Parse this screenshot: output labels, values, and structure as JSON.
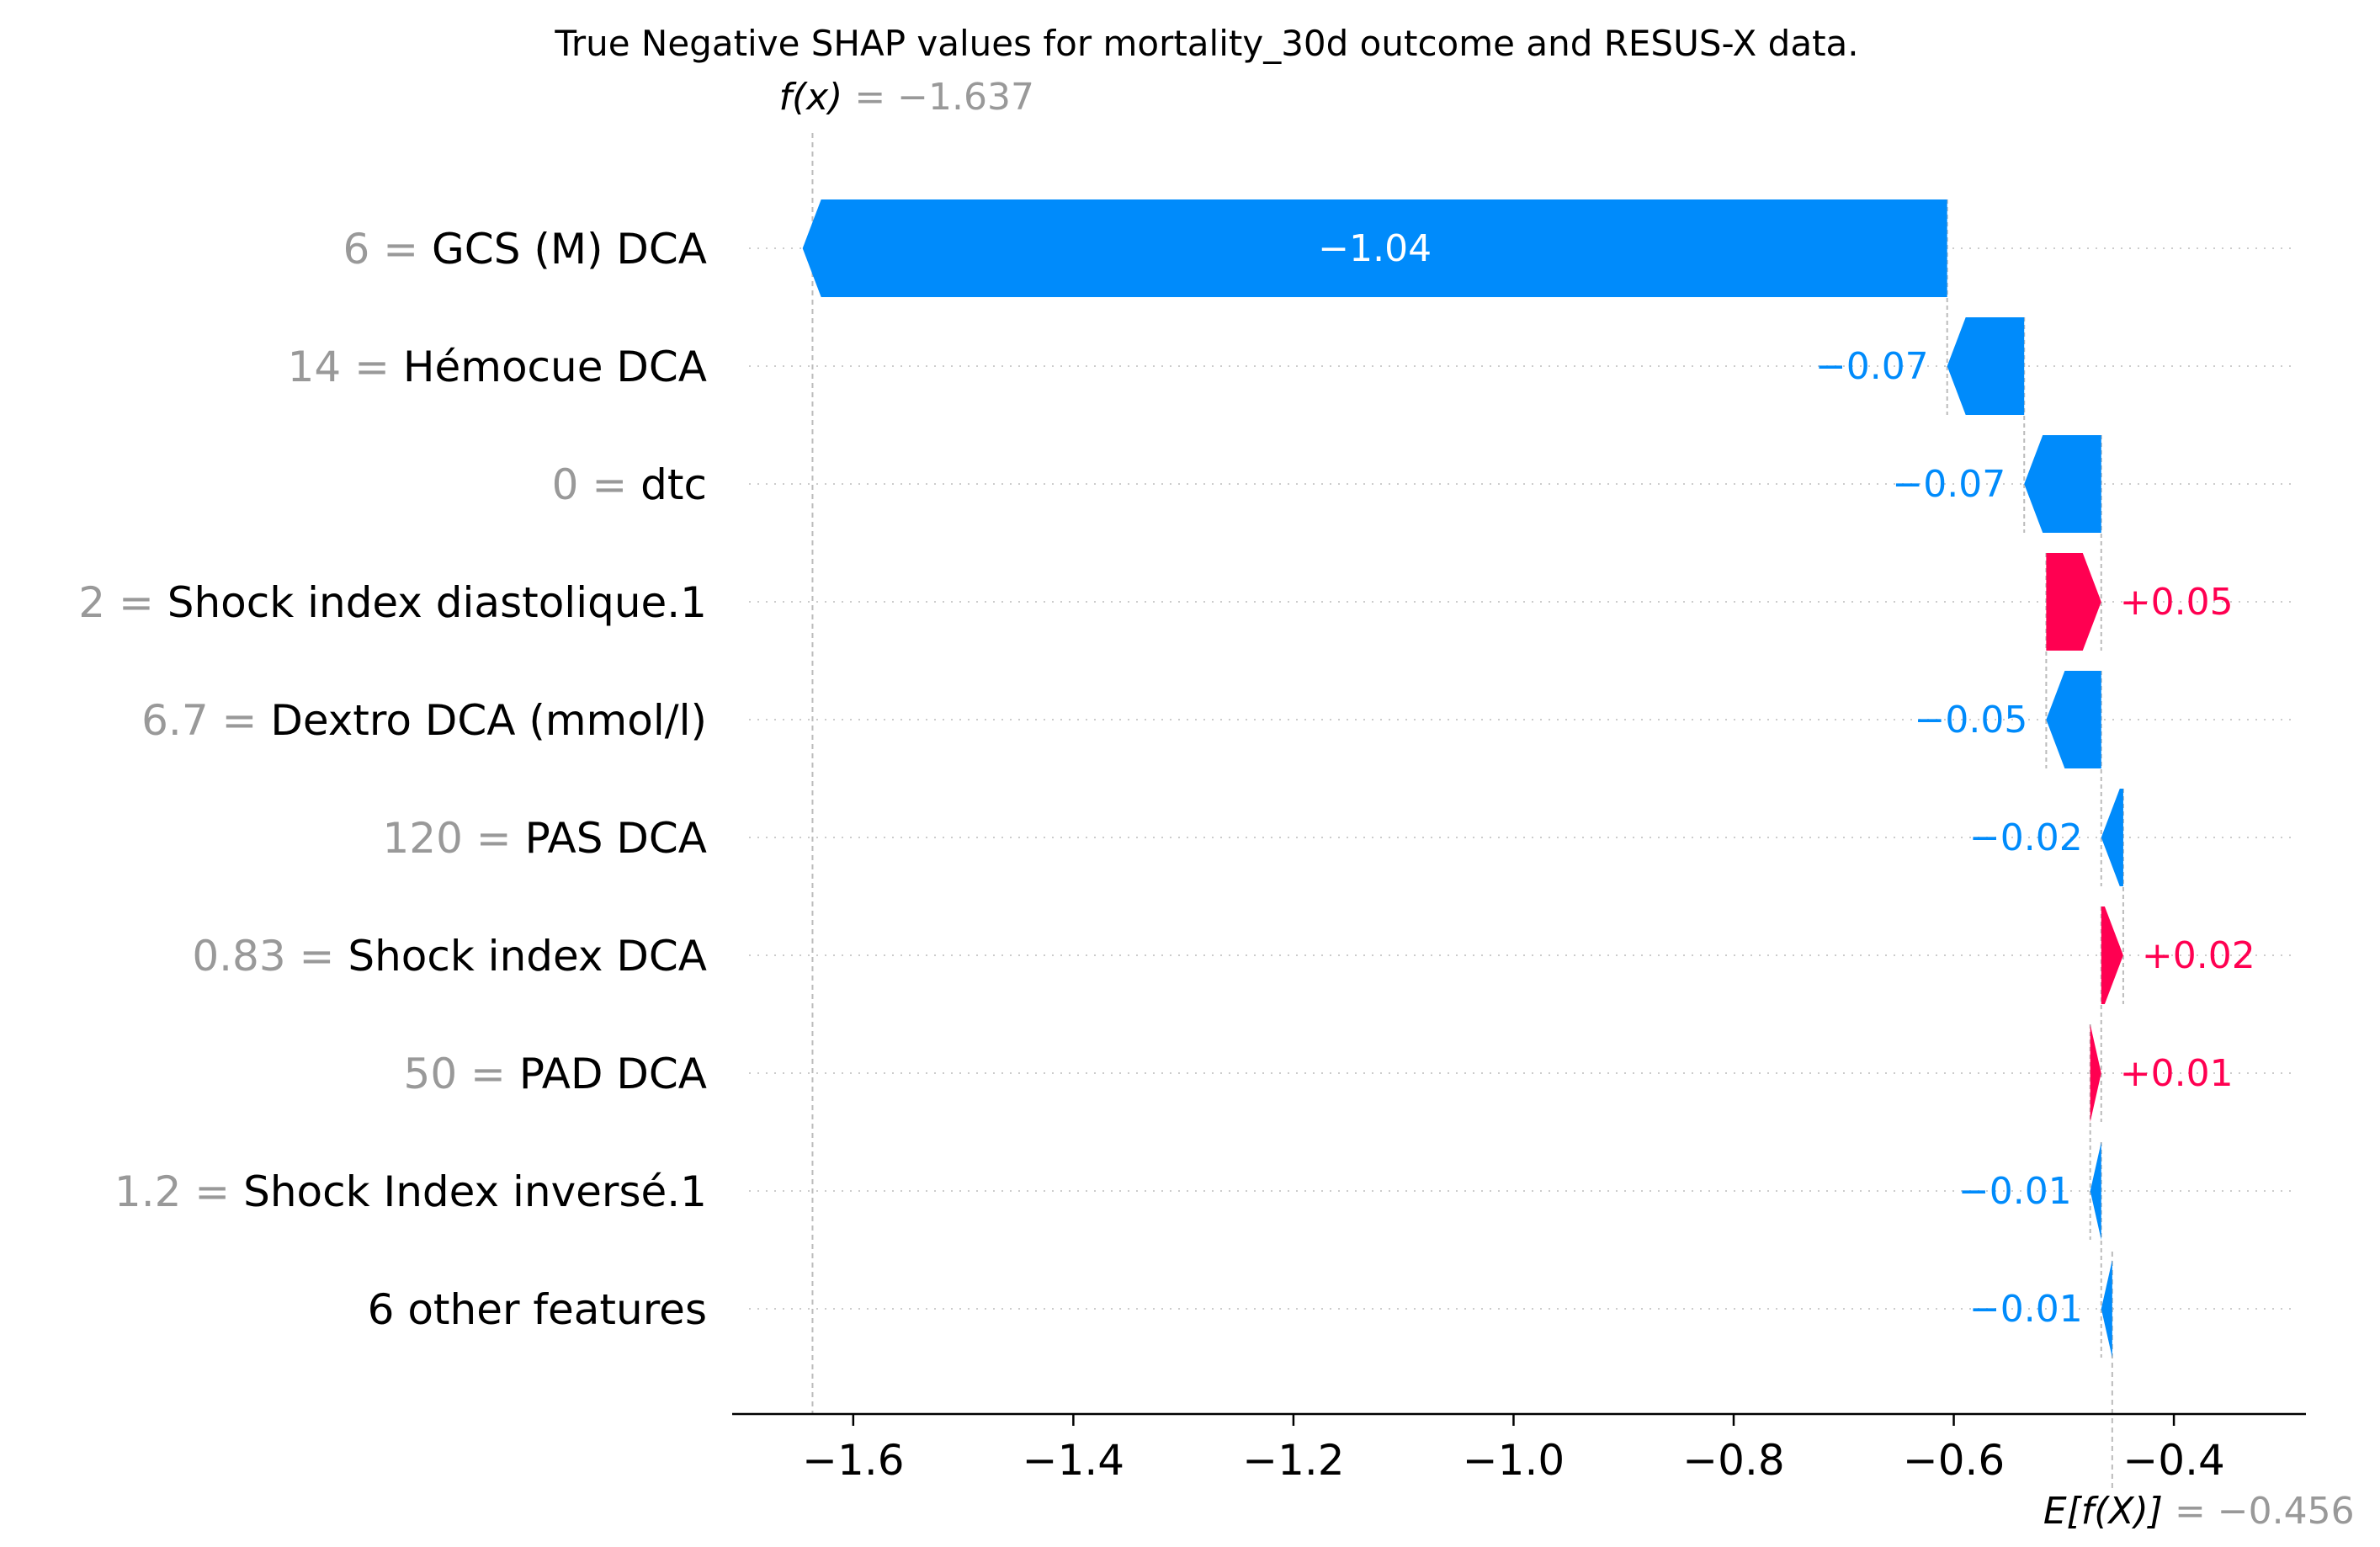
{
  "chart_data": {
    "type": "waterfall",
    "title": "True Negative SHAP values for mortality_30d outcome and RESUS-X data.",
    "fx": {
      "label": "f(x)",
      "value": -1.637,
      "value_text": "= −1.637"
    },
    "base": {
      "label": "E[f(X)]",
      "value": -0.456,
      "value_text": "= −0.456"
    },
    "xlim": [
      -1.71,
      -0.28
    ],
    "xticks": [
      -1.6,
      -1.4,
      -1.2,
      -1.0,
      -0.8,
      -0.6,
      -0.4
    ],
    "xtick_labels": [
      "−1.6",
      "−1.4",
      "−1.2",
      "−1.0",
      "−0.8",
      "−0.6",
      "−0.4"
    ],
    "colors": {
      "positive": "#ff0051",
      "negative": "#008bfb",
      "grid": "#cccccc",
      "axis": "#000000",
      "muted": "#999999"
    },
    "features": [
      {
        "value": "6 =",
        "name": "GCS (M) DCA",
        "shap": -1.04,
        "label": "−1.04",
        "label_inside": true
      },
      {
        "value": "14 =",
        "name": "Hémocue DCA",
        "shap": -0.07,
        "label": "−0.07"
      },
      {
        "value": "0 =",
        "name": "dtc",
        "shap": -0.07,
        "label": "−0.07"
      },
      {
        "value": "2 =",
        "name": "Shock index diastolique.1",
        "shap": 0.05,
        "label": "+0.05"
      },
      {
        "value": "6.7 =",
        "name": "Dextro DCA (mmol/l)",
        "shap": -0.05,
        "label": "−0.05"
      },
      {
        "value": "120 =",
        "name": "PAS DCA",
        "shap": -0.02,
        "label": "−0.02"
      },
      {
        "value": "0.83 =",
        "name": "Shock index DCA",
        "shap": 0.02,
        "label": "+0.02"
      },
      {
        "value": "50 =",
        "name": "PAD DCA",
        "shap": 0.01,
        "label": "+0.01"
      },
      {
        "value": "1.2 =",
        "name": "Shock Index inversé.1",
        "shap": -0.01,
        "label": "−0.01"
      },
      {
        "value": "",
        "name": "6 other features",
        "shap": -0.01,
        "label": "−0.01"
      }
    ]
  }
}
